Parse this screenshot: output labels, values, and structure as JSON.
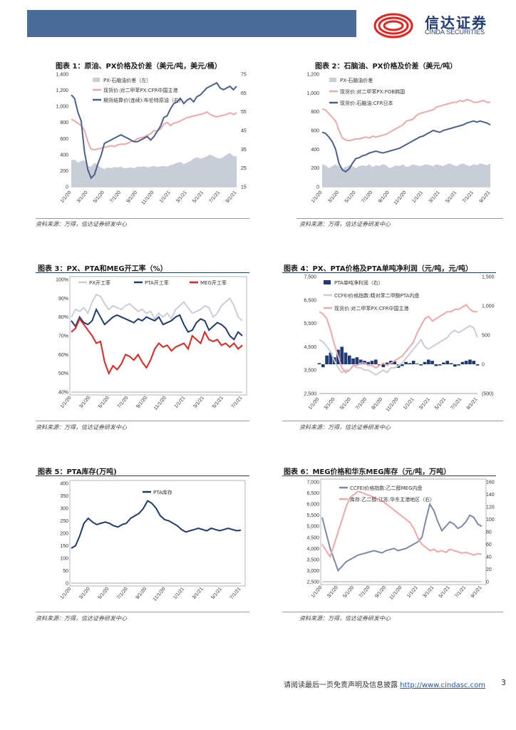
{
  "header": {
    "logo_cn": "信达证券",
    "logo_en": "CINDA SECURITIES"
  },
  "source_text": "资料来源：万得，信达证券研发中心",
  "footer": {
    "text": "请阅读最后一页免责声明及信息披露",
    "url": "http://www.cindasc.com",
    "page": "3"
  },
  "colors": {
    "blue": "#4a5f8c",
    "pink": "#f4a6a6",
    "gray": "#c9cdd8",
    "red": "#e8221c",
    "dark": "#1f3a74"
  },
  "chart_data": [
    {
      "id": "c1",
      "type": "line",
      "title": "图表 1：原油、PX价格及价差（美元/吨，美元/桶）",
      "x_ticks": [
        "1/1/20",
        "3/1/20",
        "5/1/20",
        "7/1/20",
        "9/1/20",
        "11/1/20",
        "1/1/21",
        "3/1/21",
        "5/1/21",
        "7/1/21",
        "9/1/21"
      ],
      "y_left": {
        "ticks": [
          "0",
          "200",
          "400",
          "600",
          "800",
          "1,000",
          "1,200",
          "1,400"
        ],
        "range": [
          0,
          1400
        ]
      },
      "y_right": {
        "ticks": [
          "15",
          "25",
          "35",
          "45",
          "55",
          "65",
          "75"
        ],
        "range": [
          15,
          80
        ]
      },
      "series": [
        {
          "name": "PX-石脑油价差（左）",
          "kind": "area",
          "axis": "left",
          "color": "#c9cdd8",
          "values": [
            330,
            340,
            300,
            320,
            330,
            260,
            250,
            300,
            270,
            240,
            220,
            240,
            230,
            245,
            240,
            250,
            230,
            235,
            240,
            230,
            250,
            245,
            255,
            240,
            250,
            260,
            245,
            255,
            260,
            250,
            270,
            280,
            300,
            310,
            280,
            300,
            320,
            350,
            370,
            350,
            360,
            380,
            400,
            380,
            360,
            350,
            370,
            400,
            420,
            380,
            380
          ]
        },
        {
          "name": "现货价:对二甲苯PX:CFR中国主港",
          "kind": "line",
          "axis": "left",
          "color": "#f4a6a6",
          "values": [
            840,
            820,
            790,
            760,
            700,
            560,
            470,
            460,
            470,
            480,
            490,
            500,
            510,
            500,
            520,
            530,
            530,
            540,
            560,
            570,
            600,
            610,
            620,
            640,
            660,
            700,
            690,
            720,
            780,
            800,
            760,
            790,
            800,
            820,
            840,
            860,
            870,
            880,
            890,
            900,
            910,
            930,
            900,
            880,
            870,
            880,
            890,
            900,
            920,
            900,
            920
          ]
        },
        {
          "name": "期货结算价(连续):布伦特原油（右）",
          "kind": "line",
          "axis": "right",
          "color": "#4a5f8c",
          "values": [
            68,
            66,
            58,
            53,
            35,
            25,
            20,
            22,
            28,
            33,
            40,
            41,
            42,
            43,
            44,
            45,
            44,
            43,
            42,
            41,
            41,
            42,
            43,
            44,
            42,
            44,
            47,
            50,
            55,
            56,
            60,
            63,
            64,
            66,
            63,
            65,
            66,
            64,
            67,
            68,
            70,
            72,
            73,
            74,
            75,
            72,
            71,
            72,
            73,
            71,
            73
          ]
        }
      ]
    },
    {
      "id": "c2",
      "type": "line",
      "title": "图表 2：石脑油、PX价格及价差（美元/吨）",
      "x_ticks": [
        "1/1/20",
        "3/1/20",
        "5/1/20",
        "7/1/20",
        "9/1/20",
        "11/1/20",
        "1/1/21",
        "3/1/21",
        "5/1/21",
        "7/1/21",
        "9/1/21"
      ],
      "y_left": {
        "ticks": [
          "0",
          "200",
          "400",
          "600",
          "800",
          "1,000",
          "1,200"
        ],
        "range": [
          0,
          1200
        ]
      },
      "series": [
        {
          "name": "PX-石脑油价差",
          "kind": "area",
          "color": "#c9cdd8",
          "values": [
            240,
            230,
            200,
            220,
            240,
            220,
            200,
            210,
            230,
            220,
            200,
            220,
            230,
            220,
            240,
            210,
            230,
            220,
            240,
            230,
            200,
            210,
            230,
            220,
            240,
            210,
            220,
            240,
            230,
            220,
            230,
            240,
            230,
            220,
            240,
            230,
            220,
            240,
            250,
            230,
            220,
            240,
            250,
            230,
            220,
            240,
            230,
            250,
            240,
            230,
            250
          ]
        },
        {
          "name": "现货价:对二甲苯PX:FOB韩国",
          "kind": "line",
          "color": "#f4a6a6",
          "values": [
            830,
            820,
            780,
            740,
            700,
            600,
            520,
            500,
            490,
            500,
            510,
            510,
            520,
            530,
            520,
            540,
            530,
            540,
            550,
            560,
            580,
            600,
            620,
            640,
            660,
            700,
            710,
            720,
            760,
            780,
            790,
            800,
            810,
            820,
            850,
            860,
            870,
            880,
            890,
            900,
            900,
            920,
            910,
            930,
            920,
            900,
            900,
            910,
            920,
            900,
            900
          ]
        },
        {
          "name": "现货价:石脑油:CFR日本",
          "kind": "line",
          "color": "#4a5f8c",
          "values": [
            580,
            570,
            530,
            480,
            400,
            250,
            180,
            160,
            190,
            250,
            300,
            310,
            330,
            340,
            360,
            370,
            380,
            370,
            360,
            370,
            380,
            390,
            400,
            410,
            430,
            450,
            470,
            490,
            510,
            530,
            540,
            560,
            580,
            600,
            590,
            580,
            600,
            610,
            620,
            630,
            640,
            650,
            660,
            680,
            690,
            700,
            690,
            700,
            690,
            680,
            660
          ]
        }
      ]
    },
    {
      "id": "c3",
      "type": "line",
      "title": "图表 3：PX、PTA和MEG开工率（%）",
      "x_ticks": [
        "1/1/20",
        "3/1/20",
        "5/1/20",
        "7/1/20",
        "9/1/20",
        "11/1/20",
        "1/1/21",
        "3/1/21",
        "5/1/21",
        "7/1/21"
      ],
      "y_left": {
        "ticks": [
          "40%",
          "50%",
          "60%",
          "70%",
          "80%",
          "90%",
          "100%"
        ],
        "range": [
          40,
          100
        ]
      },
      "series": [
        {
          "name": "PX开工率",
          "kind": "line",
          "color": "#c9cdd8",
          "values": [
            80,
            84,
            83,
            85,
            82,
            88,
            92,
            91,
            87,
            84,
            86,
            85,
            84,
            86,
            87,
            85,
            83,
            84,
            82,
            83,
            79,
            82,
            80,
            82,
            79,
            84,
            86,
            88,
            85,
            82,
            83,
            84,
            86,
            85,
            80,
            82,
            86,
            88,
            90,
            86,
            80,
            78
          ]
        },
        {
          "name": "PTA开工率",
          "kind": "line",
          "color": "#1f3a74",
          "values": [
            78,
            75,
            80,
            77,
            76,
            78,
            84,
            80,
            76,
            78,
            80,
            81,
            80,
            79,
            78,
            77,
            79,
            78,
            80,
            79,
            78,
            80,
            76,
            77,
            78,
            80,
            81,
            76,
            72,
            73,
            77,
            79,
            78,
            73,
            75,
            77,
            76,
            74,
            70,
            68,
            72,
            70
          ]
        },
        {
          "name": "MEG开工率",
          "kind": "line",
          "color": "#e8221c",
          "values": [
            72,
            74,
            79,
            76,
            73,
            70,
            66,
            67,
            56,
            50,
            54,
            52,
            55,
            60,
            59,
            57,
            60,
            56,
            53,
            57,
            63,
            66,
            64,
            65,
            62,
            64,
            65,
            66,
            63,
            70,
            68,
            66,
            72,
            68,
            67,
            68,
            65,
            66,
            64,
            66,
            63,
            65
          ]
        }
      ]
    },
    {
      "id": "c4",
      "type": "line",
      "title": "图表 4：PX、PTA价格及PTA单吨净利润（元/吨，元/吨）",
      "x_ticks": [
        "1/1/20",
        "3/1/20",
        "5/1/20",
        "7/1/20",
        "9/1/20",
        "11/1/20",
        "1/1/21",
        "3/1/21",
        "5/1/21",
        "7/1/21",
        "9/1/21"
      ],
      "y_left": {
        "ticks": [
          "2,500",
          "3,500",
          "4,500",
          "5,500",
          "6,500",
          "7,500"
        ],
        "range": [
          2500,
          7500
        ]
      },
      "y_right": {
        "ticks": [
          "(500)",
          "0",
          "500",
          "1,000",
          "1,500"
        ],
        "range": [
          -500,
          1500
        ]
      },
      "series": [
        {
          "name": "PTA单吨净利润（右）",
          "kind": "bar",
          "axis": "right",
          "color": "#1f3a74",
          "values": [
            20,
            -50,
            150,
            200,
            120,
            250,
            300,
            200,
            150,
            100,
            120,
            80,
            60,
            40,
            60,
            80,
            -20,
            -50,
            30,
            60,
            50,
            -60,
            -30,
            40,
            20,
            60,
            10,
            -20,
            40,
            80,
            60,
            -30,
            -20,
            30,
            60,
            20,
            -40,
            -20,
            40,
            60,
            80,
            60,
            -20
          ]
        },
        {
          "name": "CCFEI价格指数:精对苯二甲酸PTA内盘",
          "kind": "line",
          "axis": "left",
          "color": "#c9cdd8",
          "values": [
            4800,
            4700,
            4500,
            4300,
            3900,
            3600,
            3400,
            3500,
            3500,
            3700,
            3600,
            3600,
            3500,
            3500,
            3400,
            3300,
            3400,
            3500,
            3400,
            3600,
            3600,
            3700,
            3800,
            4000,
            4200,
            4400,
            4600,
            4800,
            4500,
            4400,
            4500,
            4600,
            4700,
            4800,
            4900,
            5100,
            5200,
            5100,
            5200,
            5300,
            5400,
            5300,
            4900
          ]
        },
        {
          "name": "现货价:对二甲苯PX:CFR中国主港",
          "kind": "line",
          "axis": "left",
          "color": "#f4a6a6",
          "values": [
            6000,
            5900,
            5700,
            5200,
            4600,
            4100,
            3600,
            3400,
            3500,
            3700,
            3700,
            3800,
            3800,
            3700,
            3700,
            3600,
            3700,
            3800,
            3700,
            3800,
            3900,
            4000,
            4100,
            4300,
            4500,
            4700,
            5100,
            5400,
            5700,
            5800,
            5600,
            5700,
            5800,
            5900,
            6000,
            6000,
            6100,
            6100,
            6200,
            6300,
            6100,
            6000,
            6000
          ]
        }
      ]
    },
    {
      "id": "c5",
      "type": "line",
      "title": "图表 5：PTA库存(万吨)",
      "x_ticks": [
        "1/1/20",
        "3/1/20",
        "5/1/20",
        "7/1/20",
        "9/1/20",
        "11/1/20",
        "1/1/21",
        "3/1/21",
        "5/1/21",
        "7/1/21"
      ],
      "y_left": {
        "ticks": [
          "0",
          "50",
          "100",
          "150",
          "200",
          "250",
          "300",
          "350",
          "400"
        ],
        "range": [
          0,
          400
        ]
      },
      "series": [
        {
          "name": "PTA库存",
          "kind": "line",
          "color": "#1f3a74",
          "values": [
            140,
            150,
            190,
            240,
            260,
            245,
            235,
            240,
            245,
            240,
            230,
            225,
            235,
            240,
            260,
            270,
            280,
            300,
            330,
            320,
            300,
            270,
            255,
            250,
            240,
            230,
            215,
            205,
            210,
            215,
            220,
            215,
            210,
            220,
            215,
            210,
            215,
            220,
            215,
            210,
            212
          ]
        }
      ]
    },
    {
      "id": "c6",
      "type": "line",
      "title": "图表 6：MEG价格和华东MEG库存（元/吨，万吨）",
      "x_ticks": [
        "1/1/20",
        "3/1/20",
        "5/1/20",
        "7/1/20",
        "9/1/20",
        "11/1/20",
        "1/1/21",
        "3/1/21",
        "5/1/21",
        "7/1/21",
        "9/1/21"
      ],
      "y_left": {
        "ticks": [
          "2,500",
          "3,000",
          "3,500",
          "4,000",
          "4,500",
          "5,000",
          "5,500",
          "6,000",
          "6,500",
          "7,000"
        ],
        "range": [
          2500,
          7000
        ]
      },
      "y_right": {
        "ticks": [
          "0",
          "20",
          "40",
          "60",
          "80",
          "100",
          "120",
          "140",
          "160"
        ],
        "range": [
          0,
          160
        ]
      },
      "series": [
        {
          "name": "CCFEI价格指数:乙二醇MEG内盘",
          "kind": "line",
          "axis": "left",
          "color": "#7d89a8",
          "values": [
            5400,
            4700,
            4000,
            3500,
            3000,
            3200,
            3400,
            3500,
            3600,
            3700,
            3750,
            3800,
            3850,
            3900,
            3850,
            3800,
            3900,
            3950,
            4000,
            3900,
            3950,
            4000,
            4100,
            4200,
            4300,
            4500,
            5300,
            6000,
            5700,
            5200,
            4800,
            5000,
            5200,
            5100,
            4900,
            5000,
            5200,
            5500,
            5400,
            5100,
            5000
          ]
        },
        {
          "name": "库存:乙二醇:江苏:华东主港地区（右）",
          "kind": "line",
          "axis": "right",
          "color": "#f4a6a6",
          "values": [
            60,
            50,
            40,
            60,
            80,
            100,
            120,
            135,
            140,
            145,
            143,
            140,
            138,
            135,
            132,
            130,
            125,
            120,
            115,
            110,
            105,
            100,
            95,
            85,
            70,
            60,
            55,
            50,
            52,
            48,
            50,
            47,
            52,
            50,
            48,
            46,
            47,
            45,
            43,
            45,
            44
          ]
        }
      ]
    }
  ]
}
